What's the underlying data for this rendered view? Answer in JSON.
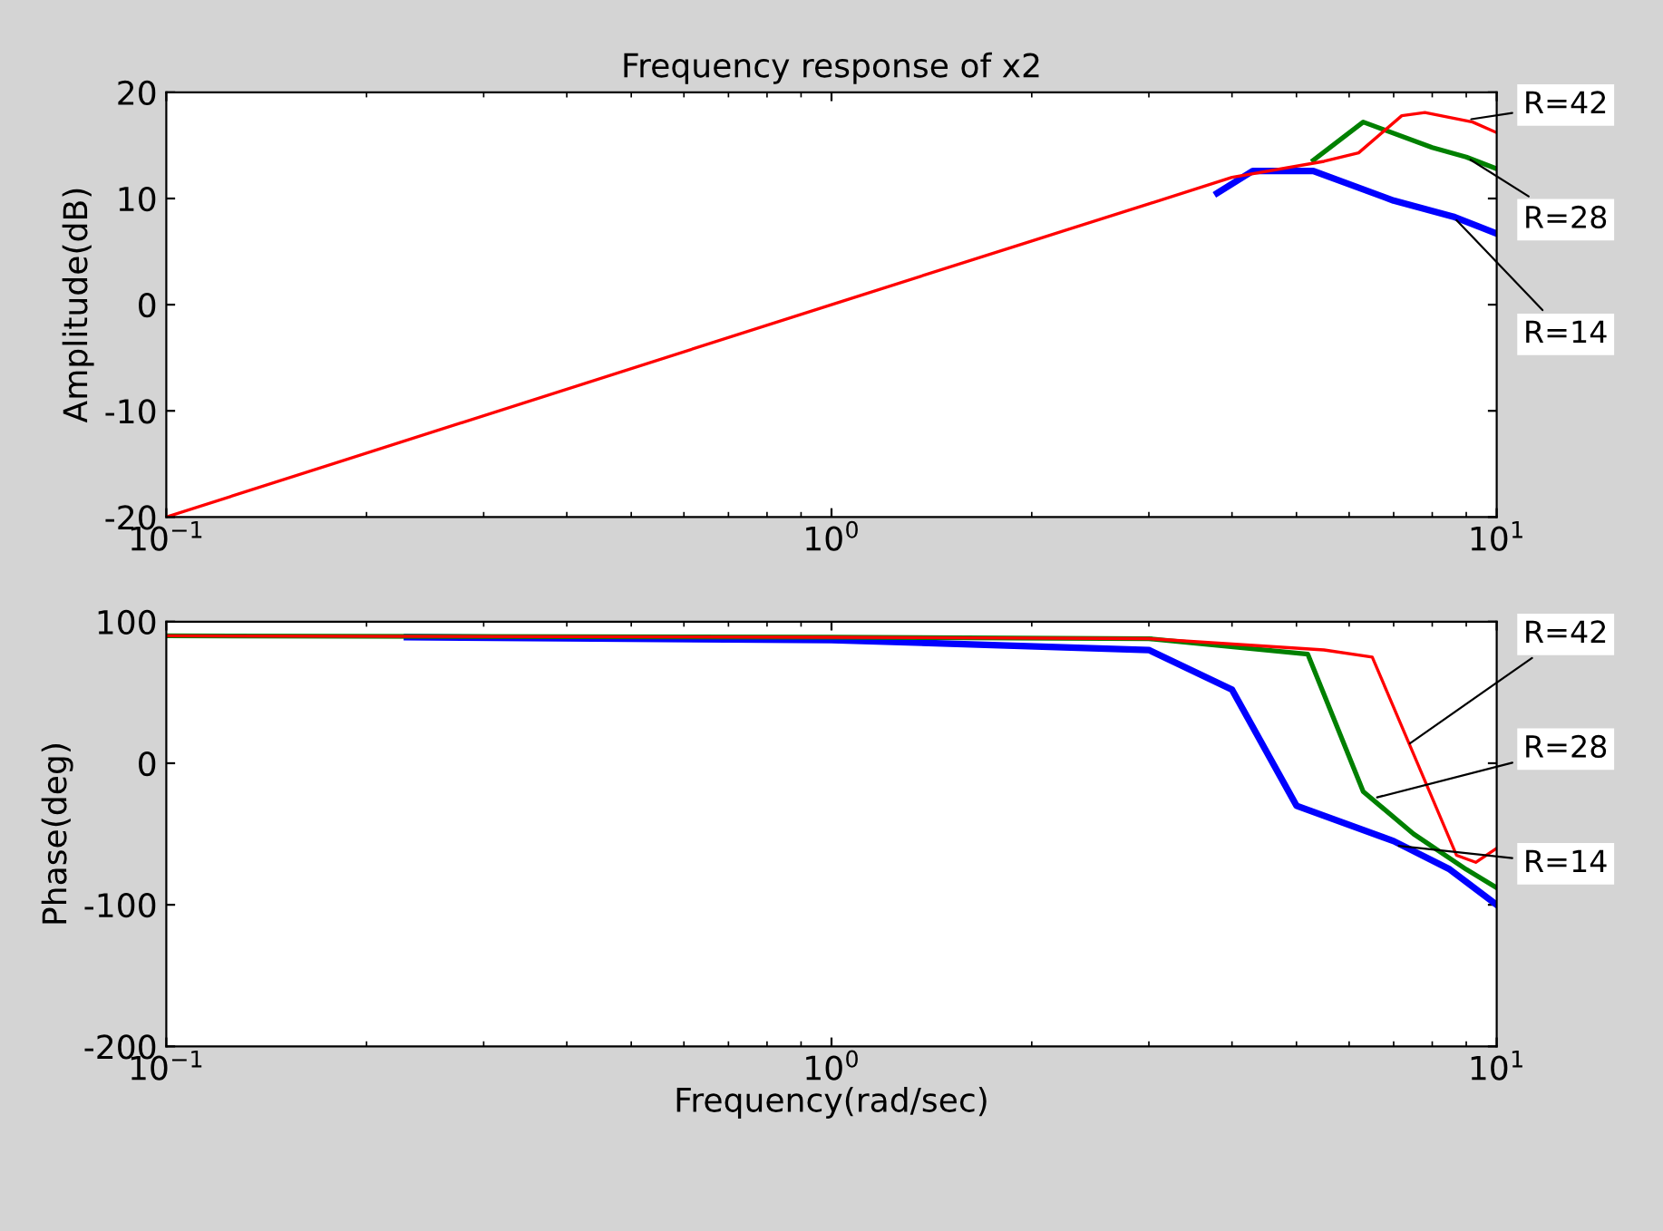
{
  "chart_data": [
    {
      "type": "line",
      "title": "Frequency response of x2",
      "ylabel": "Amplitude(dB)",
      "log": "x",
      "grid": false,
      "legend": false,
      "xlim": [
        0.1,
        10
      ],
      "xticks": [
        {
          "value": 0.1,
          "label": "10$^{−1}$"
        },
        {
          "value": 1,
          "label": "10$^{0}$"
        },
        {
          "value": 10,
          "label": "10$^{1}$"
        }
      ],
      "ylim": [
        -20,
        20
      ],
      "yticks": [
        -20,
        -10,
        0,
        10,
        20
      ],
      "series": [
        {
          "color": "#0000ff",
          "x": [
            3.8,
            4.3,
            5.3,
            7,
            8.6,
            10
          ],
          "values": [
            10.5,
            12.6,
            12.6,
            9.8,
            8.3,
            6.7
          ]
        },
        {
          "color": "#008000",
          "x": [
            5.3,
            6.3,
            8,
            9,
            10
          ],
          "values": [
            13.6,
            17.2,
            14.8,
            13.9,
            12.8
          ]
        },
        {
          "color": "#ff0000",
          "x": [
            0.1,
            1,
            2,
            3,
            4,
            5.5,
            6.2,
            7.2,
            7.8,
            9.2,
            10
          ],
          "values": [
            -20,
            0,
            6,
            9.5,
            12,
            13.5,
            14.3,
            17.8,
            18.1,
            17.2,
            16.2
          ]
        }
      ],
      "annotations": [
        {
          "text": "R=42",
          "x": 9.0,
          "y": 17.4
        },
        {
          "text": "R=28",
          "x": 9.0,
          "y": 13.9
        },
        {
          "text": "R=14",
          "x": 8.6,
          "y": 8.3
        }
      ]
    },
    {
      "type": "line",
      "xlabel": "Frequency(rad/sec)",
      "ylabel": "Phase(deg)",
      "log": "x",
      "grid": false,
      "legend": false,
      "xlim": [
        0.1,
        10
      ],
      "xticks": [
        {
          "value": 0.1,
          "label": "10$^{−1}$"
        },
        {
          "value": 1,
          "label": "10$^{0}$"
        },
        {
          "value": 10,
          "label": "10$^{1}$"
        }
      ],
      "ylim": [
        -200,
        100
      ],
      "yticks": [
        -200,
        -100,
        0,
        100
      ],
      "series": [
        {
          "color": "#0000ff",
          "x": [
            0.23,
            1,
            3,
            4,
            5,
            7,
            8.5,
            10
          ],
          "values": [
            89,
            87,
            80,
            52,
            -30,
            -55,
            -75,
            -100
          ]
        },
        {
          "color": "#008000",
          "x": [
            0.1,
            1,
            3,
            5.2,
            6.3,
            7.5,
            9,
            10
          ],
          "values": [
            90,
            89,
            88,
            77,
            -20,
            -50,
            -75,
            -88
          ]
        },
        {
          "color": "#ff0000",
          "x": [
            0.1,
            1,
            3,
            5.5,
            6.5,
            7.6,
            8.7,
            9.3,
            10
          ],
          "values": [
            90,
            89,
            88,
            80,
            75,
            0,
            -65,
            -70,
            -60
          ]
        }
      ],
      "annotations": [
        {
          "text": "R=42",
          "x": 7.3,
          "y": 12
        },
        {
          "text": "R=28",
          "x": 6.5,
          "y": -25
        },
        {
          "text": "R=14",
          "x": 7.0,
          "y": -58
        }
      ]
    }
  ]
}
